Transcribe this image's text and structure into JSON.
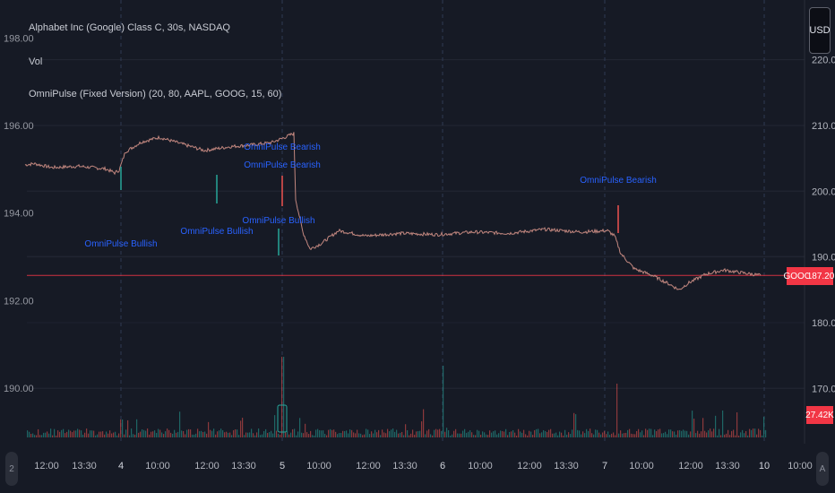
{
  "legend": {
    "symbol_line": "Alphabet Inc (Google) Class C, 30s, NASDAQ",
    "volume_line": "Vol",
    "indicator_line": "OmniPulse (Fixed Version) (20, 80, AAPL, GOOG, 15, 60)"
  },
  "currency_button": "USD",
  "badges": {
    "symbol": "GOOG",
    "last_price": "187.20",
    "volume": "27.42K"
  },
  "colors": {
    "background": "#161a25",
    "price_line": "#c2877f",
    "bullish": "#26a69a",
    "bearish": "#ef5350",
    "signal_text": "#2962ff",
    "badge_red": "#f23645"
  },
  "scroll_left_icon": "2",
  "scroll_right_icon": "A",
  "chart_data": {
    "type": "line",
    "left_axis": {
      "ticks": [
        190.0,
        192.0,
        194.0,
        196.0,
        198.0
      ]
    },
    "right_axis": {
      "ticks": [
        170.0,
        180.0,
        190.0,
        200.0,
        210.0,
        220.0
      ]
    },
    "x_ticks": [
      "12:00",
      "13:30",
      "4",
      "10:00",
      "12:00",
      "13:30",
      "5",
      "10:00",
      "12:00",
      "13:30",
      "6",
      "10:00",
      "12:00",
      "13:30",
      "7",
      "10:00",
      "12:00",
      "13:30",
      "10",
      "10:00"
    ],
    "day_ticks": [
      "4",
      "5",
      "6",
      "7",
      "10"
    ],
    "price_series": [
      [
        0,
        204.0
      ],
      [
        10,
        204.2
      ],
      [
        30,
        203.6
      ],
      [
        60,
        203.8
      ],
      [
        90,
        203.4
      ],
      [
        100,
        202.8
      ],
      [
        105,
        203.2
      ],
      [
        112,
        206.0
      ],
      [
        130,
        207.5
      ],
      [
        150,
        208.2
      ],
      [
        175,
        207.2
      ],
      [
        200,
        206.2
      ],
      [
        230,
        206.8
      ],
      [
        250,
        207.0
      ],
      [
        275,
        207.4
      ],
      [
        290,
        208.2
      ],
      [
        300,
        208.8
      ],
      [
        302,
        198.8
      ],
      [
        310,
        193.8
      ],
      [
        318,
        191.2
      ],
      [
        330,
        192.0
      ],
      [
        350,
        194.0
      ],
      [
        380,
        193.2
      ],
      [
        420,
        193.6
      ],
      [
        460,
        193.4
      ],
      [
        500,
        193.8
      ],
      [
        540,
        193.6
      ],
      [
        580,
        194.2
      ],
      [
        620,
        193.8
      ],
      [
        650,
        194.0
      ],
      [
        658,
        193.2
      ],
      [
        665,
        190.5
      ],
      [
        680,
        188.2
      ],
      [
        700,
        187.2
      ],
      [
        720,
        185.8
      ],
      [
        730,
        185.0
      ],
      [
        740,
        186.0
      ],
      [
        760,
        187.4
      ],
      [
        780,
        188.0
      ],
      [
        800,
        187.6
      ],
      [
        821,
        187.2
      ]
    ],
    "last_price": 187.2,
    "signals": [
      {
        "label": "OmniPulse Bullish",
        "type": "bullish"
      },
      {
        "label": "OmniPulse Bullish",
        "type": "bullish"
      },
      {
        "label": "OmniPulse Bearish",
        "type": "bearish"
      },
      {
        "label": "OmniPulse Bearish",
        "type": "bearish"
      },
      {
        "label": "OmniPulse Bullish",
        "type": "bullish"
      },
      {
        "label": "OmniPulse Bearish",
        "type": "bearish"
      }
    ],
    "grid": true
  }
}
